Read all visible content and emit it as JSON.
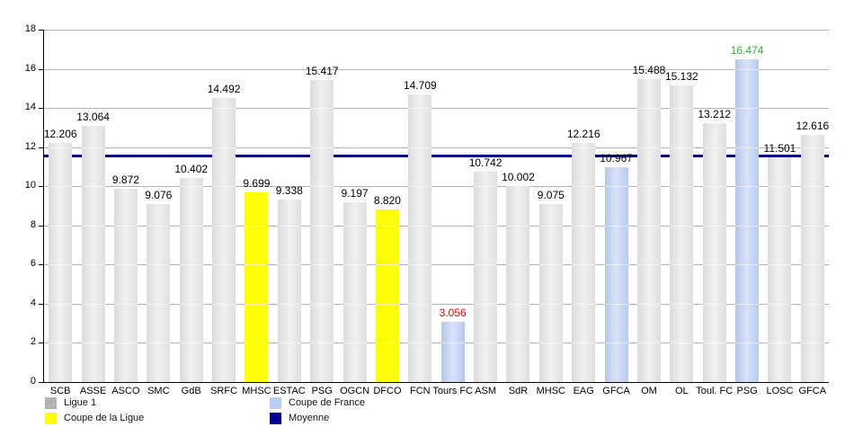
{
  "chart_data": {
    "type": "bar",
    "title": "",
    "categories": [
      "SCB",
      "ASSE",
      "ASCO",
      "SMC",
      "GdB",
      "SRFC",
      "MHSC",
      "ESTAC",
      "PSG",
      "OGCN",
      "DFCO",
      "FCN",
      "Tours FC",
      "ASM",
      "SdR",
      "MHSC",
      "EAG",
      "GFCA",
      "OM",
      "OL",
      "Toul. FC",
      "PSG",
      "LOSC",
      "GFCA"
    ],
    "values": [
      12.206,
      13.064,
      9.872,
      9.076,
      10.402,
      14.492,
      9.699,
      9.338,
      15.417,
      9.197,
      8.82,
      14.709,
      3.056,
      10.742,
      10.002,
      9.075,
      12.216,
      10.967,
      15.488,
      15.132,
      13.212,
      16.474,
      11.501,
      12.616
    ],
    "value_labels": [
      "12.206",
      "13.064",
      "9.872",
      "9.076",
      "10.402",
      "14.492",
      "9.699",
      "9.338",
      "15.417",
      "9.197",
      "8.820",
      "14.709",
      "3.056",
      "10.742",
      "10.002",
      "9.075",
      "12.216",
      "10.967",
      "15.488",
      "15.132",
      "13.212",
      "16.474",
      "11.501",
      "12.616"
    ],
    "bar_groups": [
      "ligue1",
      "ligue1",
      "ligue1",
      "ligue1",
      "ligue1",
      "ligue1",
      "coupe_ligue",
      "ligue1",
      "ligue1",
      "ligue1",
      "coupe_ligue",
      "ligue1",
      "coupe_france",
      "ligue1",
      "ligue1",
      "ligue1",
      "ligue1",
      "coupe_france",
      "ligue1",
      "ligue1",
      "ligue1",
      "coupe_france",
      "ligue1",
      "ligue1"
    ],
    "value_label_colors": [
      "black",
      "black",
      "black",
      "black",
      "black",
      "black",
      "black",
      "black",
      "black",
      "black",
      "black",
      "black",
      "red",
      "black",
      "black",
      "black",
      "black",
      "black",
      "black",
      "black",
      "black",
      "green",
      "black",
      "black"
    ],
    "ylim": [
      0,
      18
    ],
    "ytick_step": 2,
    "grid": true,
    "average_line": {
      "label": "Moyenne",
      "value": 11.53
    },
    "legend": {
      "position": "bottom-left",
      "items": [
        {
          "key": "ligue1",
          "label": "Ligue 1",
          "swatch": "#b3b3b3"
        },
        {
          "key": "coupe_ligue",
          "label": "Coupe de la Ligue",
          "swatch": "#ffff00"
        },
        {
          "key": "coupe_france",
          "label": "Coupe de France",
          "swatch": "#b9cdf3"
        },
        {
          "key": "moyenne",
          "label": "Moyenne",
          "swatch": "#000090"
        }
      ]
    },
    "colors": {
      "ligue1_bar": "#e4e4e4",
      "coupe_ligue_bar": "#ffff00",
      "coupe_france_bar": "#b9cdf3",
      "average_line": "#000082",
      "grid": "#b3b3b3",
      "axis": "#000000",
      "text": "#000000",
      "value_red": "#ee0000",
      "value_green": "#2eb235"
    }
  }
}
